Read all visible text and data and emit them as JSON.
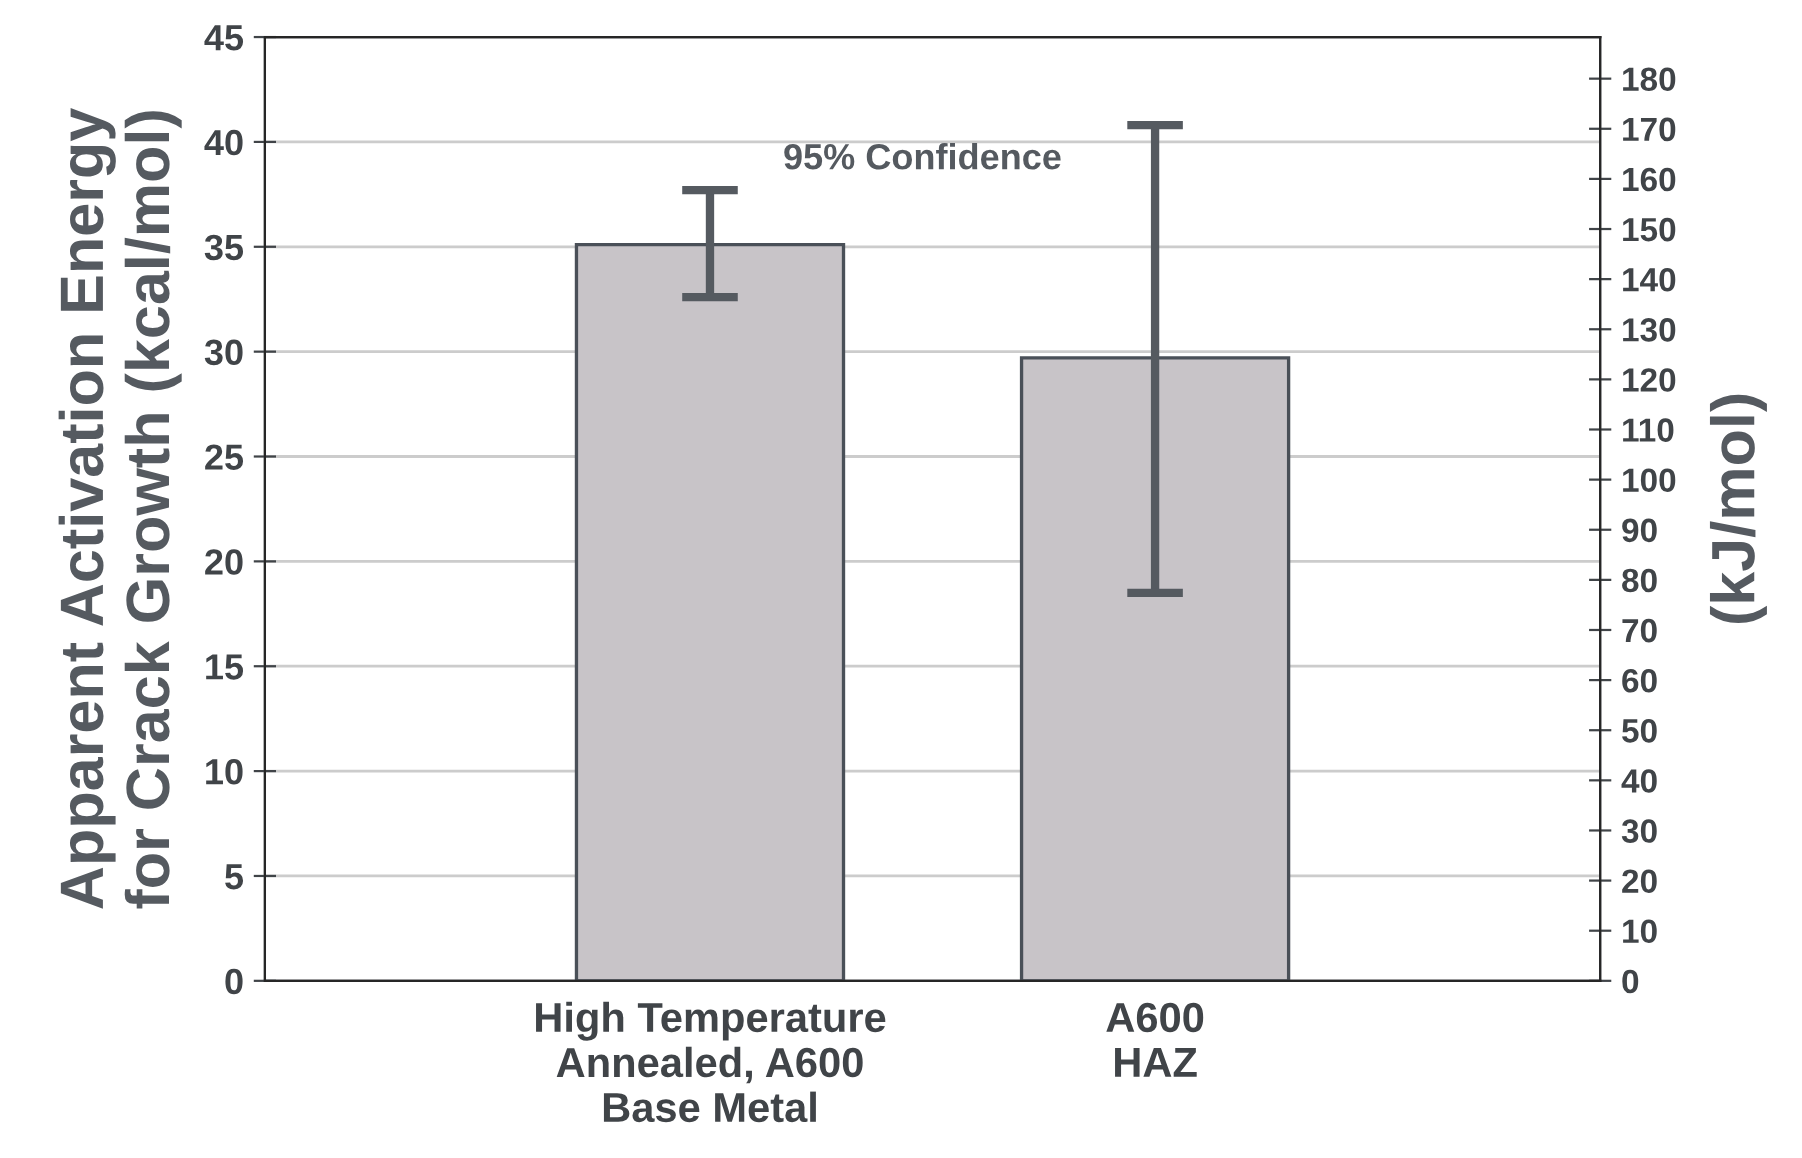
{
  "chart_data": {
    "type": "bar",
    "ylabel": "Apparent Activation Energy\nfor Crack Growth (kcal/mol)",
    "y2label": "(kJ/mol)",
    "categories": [
      "High Temperature\nAnnealed, A600\nBase Metal",
      "A600\nHAZ"
    ],
    "values": [
      35.1,
      29.7
    ],
    "errors": [
      [
        32.6,
        37.7
      ],
      [
        18.5,
        40.8
      ]
    ],
    "color": "#c8c4c8",
    "ylim": [
      0,
      45
    ],
    "yticks": [
      0,
      5,
      10,
      15,
      20,
      25,
      30,
      35,
      40,
      45
    ],
    "y2lim": [
      0,
      188.3
    ],
    "y2ticks": [
      0,
      10,
      20,
      30,
      40,
      50,
      60,
      70,
      80,
      90,
      100,
      110,
      120,
      130,
      140,
      150,
      160,
      170,
      180
    ],
    "annotations": [
      "95% Confidence"
    ],
    "grid": "y"
  }
}
